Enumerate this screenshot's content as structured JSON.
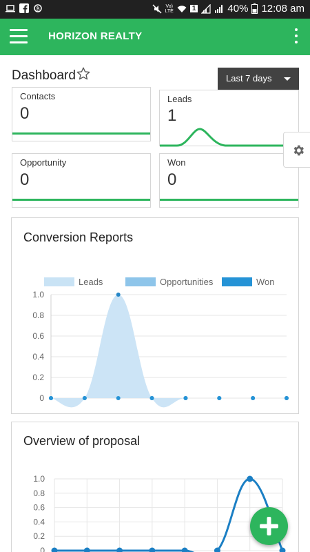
{
  "status_bar": {
    "time": "12:08 am",
    "battery": "40%",
    "network": "LTE",
    "sim": "1"
  },
  "app_bar": {
    "title": "HORIZON REALTY",
    "menu_icon": "hamburger-icon",
    "more_icon": "more-vert-icon"
  },
  "dashboard": {
    "title": "Dashboard",
    "range_label": "Last 7 days"
  },
  "stats": [
    {
      "label": "Contacts",
      "value": "0"
    },
    {
      "label": "Leads",
      "value": "1"
    },
    {
      "label": "Opportunity",
      "value": "0"
    },
    {
      "label": "Won",
      "value": "0"
    }
  ],
  "colors": {
    "accent": "#2db55d",
    "leads_fill": "#c9e3f5",
    "opportunities_fill": "#8ec5ea",
    "won_fill": "#2593d6",
    "proposal_line": "#1b7fc4"
  },
  "chart_data": [
    {
      "type": "area",
      "title": "Conversion Reports",
      "legend": [
        "Leads",
        "Opportunities",
        "Won"
      ],
      "legend_position": "top",
      "ylim": [
        0,
        1
      ],
      "yticks": [
        "0",
        "0.2",
        "0.4",
        "0.6",
        "0.8",
        "1.0"
      ],
      "grid": true,
      "series": [
        {
          "name": "Leads",
          "values": [
            0,
            0,
            1,
            0,
            0,
            0,
            0,
            0
          ]
        },
        {
          "name": "Opportunities",
          "values": [
            0,
            0,
            0,
            0,
            0,
            0,
            0,
            0
          ]
        },
        {
          "name": "Won",
          "values": [
            0,
            0,
            0,
            0,
            0,
            0,
            0,
            0
          ]
        }
      ]
    },
    {
      "type": "line",
      "title": "Overview of proposal",
      "ylim": [
        0,
        1
      ],
      "yticks": [
        "0",
        "0.2",
        "0.4",
        "0.6",
        "0.8",
        "1.0"
      ],
      "grid": true,
      "series": [
        {
          "values": [
            0,
            0,
            0,
            0,
            0,
            0,
            1,
            0
          ]
        }
      ]
    }
  ]
}
